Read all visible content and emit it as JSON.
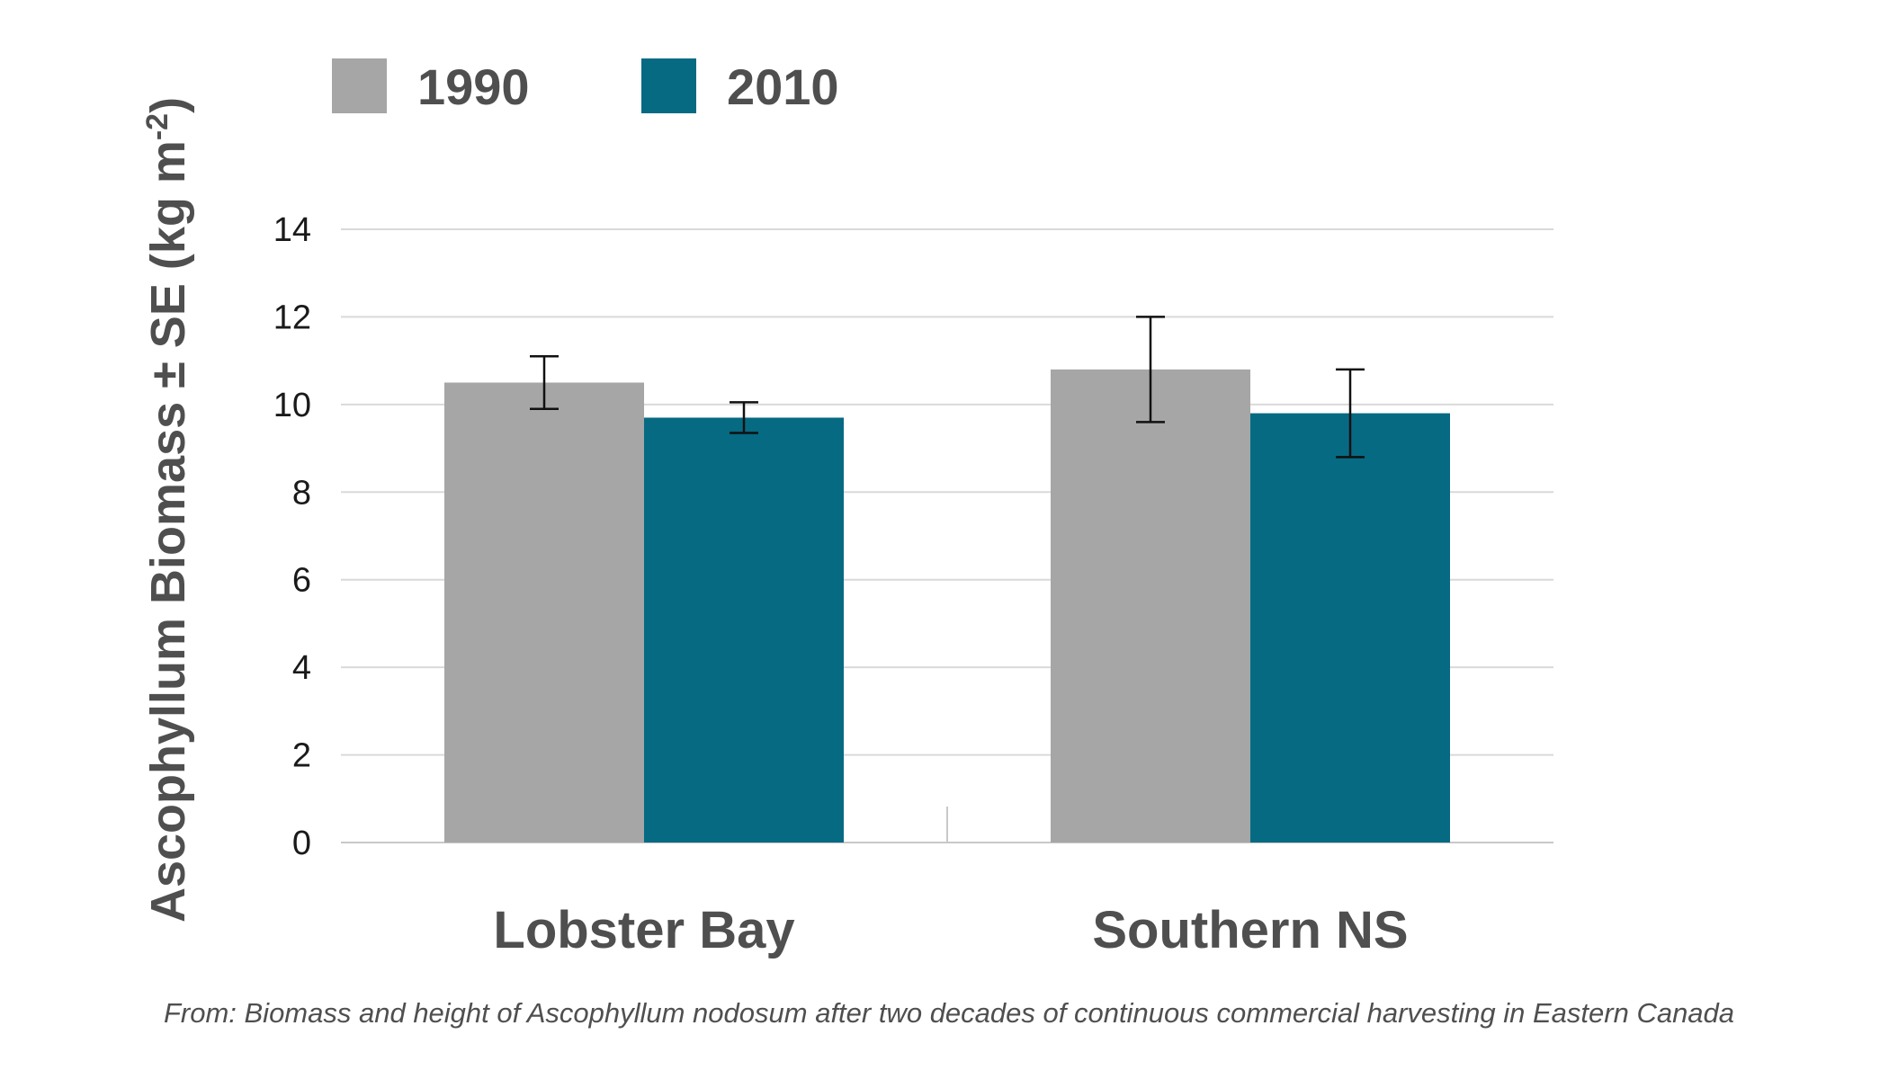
{
  "chart_data": {
    "type": "bar",
    "categories": [
      "Lobster Bay",
      "Southern NS"
    ],
    "series": [
      {
        "name": "1990",
        "color": "#a5a6a5",
        "values": [
          10.5,
          10.8
        ],
        "error": [
          0.6,
          1.2
        ]
      },
      {
        "name": "2010",
        "color": "#066a83",
        "values": [
          9.7,
          9.8
        ],
        "error": [
          0.35,
          1.0
        ]
      }
    ],
    "ylabel": "Ascophyllum Biomass ± SE (kg m-2)",
    "ylabel_parts": {
      "main": "Ascophyllum Biomass ± SE (kg m",
      "superscript": "-2",
      "close": ")"
    },
    "ylim": [
      0,
      14
    ],
    "yticks": [
      "0",
      "2",
      "4",
      "6",
      "8",
      "10",
      "12",
      "14"
    ],
    "grid": true,
    "legend_position": "top-left",
    "caption": "From: Biomass and height of Ascophyllum nodosum after two decades of continuous commercial harvesting in Eastern Canada"
  }
}
